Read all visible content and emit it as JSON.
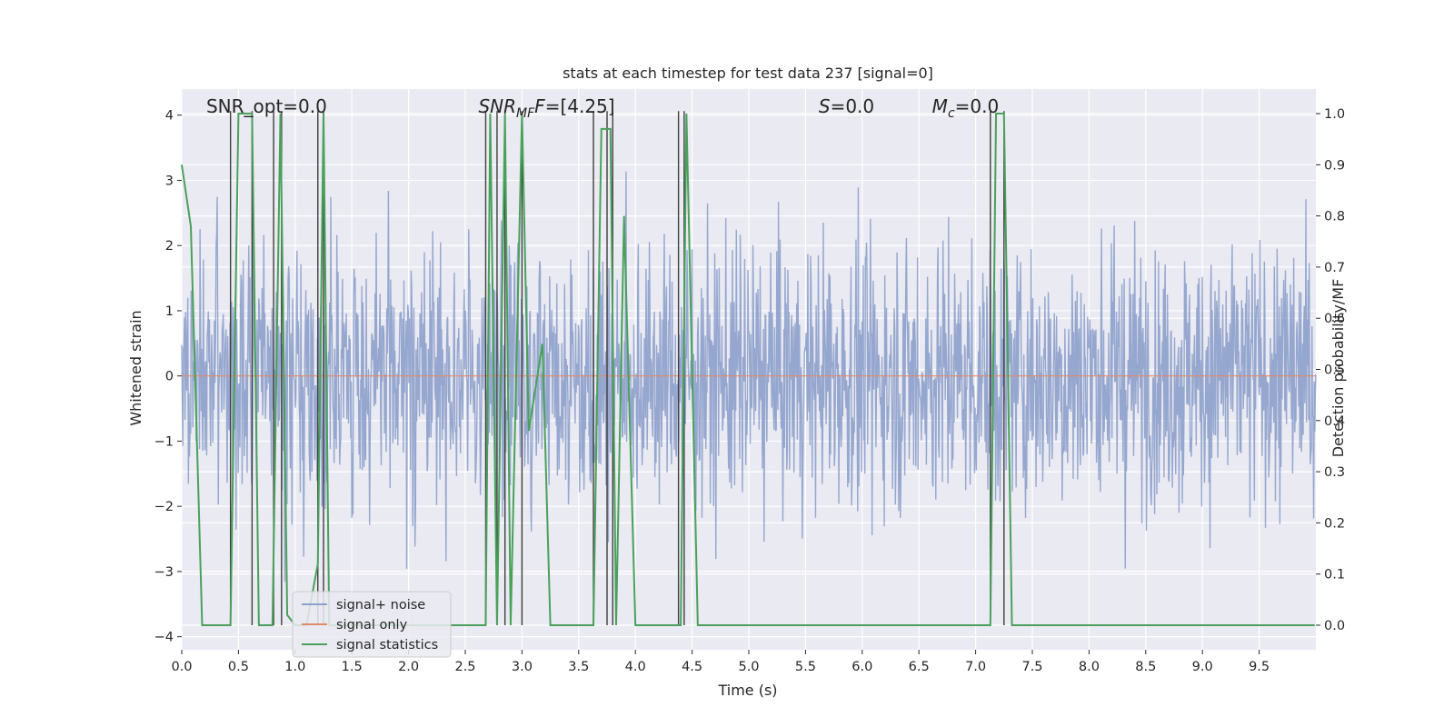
{
  "chart_data": {
    "type": "line",
    "title": "stats at each timestep for test data 237 [signal=0]",
    "xlabel": "Time (s)",
    "ylabel": "Whitened strain",
    "y2label": "Detection probability/MF",
    "xlim": [
      0.0,
      10.0
    ],
    "ylim": [
      -4.2,
      4.4
    ],
    "y2lim": [
      -0.048,
      1.048
    ],
    "x_ticks": [
      0.0,
      0.5,
      1.0,
      1.5,
      2.0,
      2.5,
      3.0,
      3.5,
      4.0,
      4.5,
      5.0,
      5.5,
      6.0,
      6.5,
      7.0,
      7.5,
      8.0,
      8.5,
      9.0,
      9.5
    ],
    "x_tick_labels": [
      "0.0",
      "0.5",
      "1.0",
      "1.5",
      "2.0",
      "2.5",
      "3.0",
      "3.5",
      "4.0",
      "4.5",
      "5.0",
      "5.5",
      "6.0",
      "6.5",
      "7.0",
      "7.5",
      "8.0",
      "8.5",
      "9.0",
      "9.5"
    ],
    "y_ticks": [
      -4,
      -3,
      -2,
      -1,
      0,
      1,
      2,
      3,
      4
    ],
    "y_tick_labels": [
      "−4",
      "−3",
      "−2",
      "−1",
      "0",
      "1",
      "2",
      "3",
      "4"
    ],
    "y2_ticks": [
      0.0,
      0.1,
      0.2,
      0.3,
      0.4,
      0.5,
      0.6,
      0.7,
      0.8,
      0.9,
      1.0
    ],
    "y2_tick_labels": [
      "0.0",
      "0.1",
      "0.2",
      "0.3",
      "0.4",
      "0.5",
      "0.6",
      "0.7",
      "0.8",
      "0.9",
      "1.0"
    ],
    "grid": true,
    "legend_position": "lower-left",
    "annotations": [
      {
        "x": 0.2,
        "text": "SNR_opt=0.0"
      },
      {
        "x": 2.6,
        "text_italic": "SNR",
        "text_sub": "MF",
        "text_italic_suffix": "F",
        "text_rest": "=[4.25]"
      },
      {
        "x": 5.6,
        "text_italic": "S",
        "text_rest": "=0.0"
      },
      {
        "x": 6.6,
        "text_italic": "M",
        "text_sub": "c",
        "text_rest": "=0.0"
      }
    ],
    "series": [
      {
        "name": "signal+ noise",
        "color": "#8da0cb",
        "axis": "left",
        "noise_sigma": 1.0,
        "noise_min": -3.6,
        "noise_max": 3.4,
        "n_samples": 2048
      },
      {
        "name": "signal only",
        "color": "#e08a6a",
        "axis": "left",
        "constant": 0.0
      },
      {
        "name": "signal statistics",
        "color": "#4aa15b",
        "axis": "right",
        "x": [
          0.0,
          0.08,
          0.18,
          0.32,
          0.43,
          0.5,
          0.62,
          0.68,
          0.8,
          0.87,
          0.93,
          1.0,
          1.1,
          1.2,
          1.25,
          1.3,
          2.68,
          2.72,
          2.78,
          2.85,
          2.9,
          3.0,
          3.06,
          3.18,
          3.25,
          3.63,
          3.7,
          3.78,
          3.83,
          3.9,
          4.0,
          4.4,
          4.45,
          4.55,
          7.13,
          7.18,
          7.25,
          7.32,
          9.99
        ],
        "y": [
          0.9,
          0.78,
          0.0,
          0.0,
          0.0,
          1.0,
          1.0,
          0.0,
          0.0,
          1.0,
          0.02,
          0.0,
          0.0,
          0.12,
          1.0,
          0.0,
          0.0,
          1.0,
          0.0,
          1.0,
          0.0,
          1.0,
          0.38,
          0.55,
          0.0,
          0.0,
          0.97,
          0.97,
          0.0,
          0.8,
          0.0,
          0.0,
          1.0,
          0.0,
          0.0,
          1.0,
          1.0,
          0.0,
          0.0
        ]
      },
      {
        "name": "detection markers",
        "color": "#3f3f3f",
        "axis": "right",
        "vlines": [
          0.43,
          0.62,
          0.81,
          0.88,
          1.2,
          1.25,
          2.68,
          2.78,
          2.85,
          3.0,
          3.63,
          3.75,
          3.8,
          4.38,
          4.43,
          7.13,
          7.25
        ]
      }
    ],
    "legend": [
      {
        "label": "signal+ noise",
        "color": "#8da0cb"
      },
      {
        "label": "signal only",
        "color": "#e08a6a"
      },
      {
        "label": "signal statistics",
        "color": "#4aa15b"
      }
    ]
  }
}
